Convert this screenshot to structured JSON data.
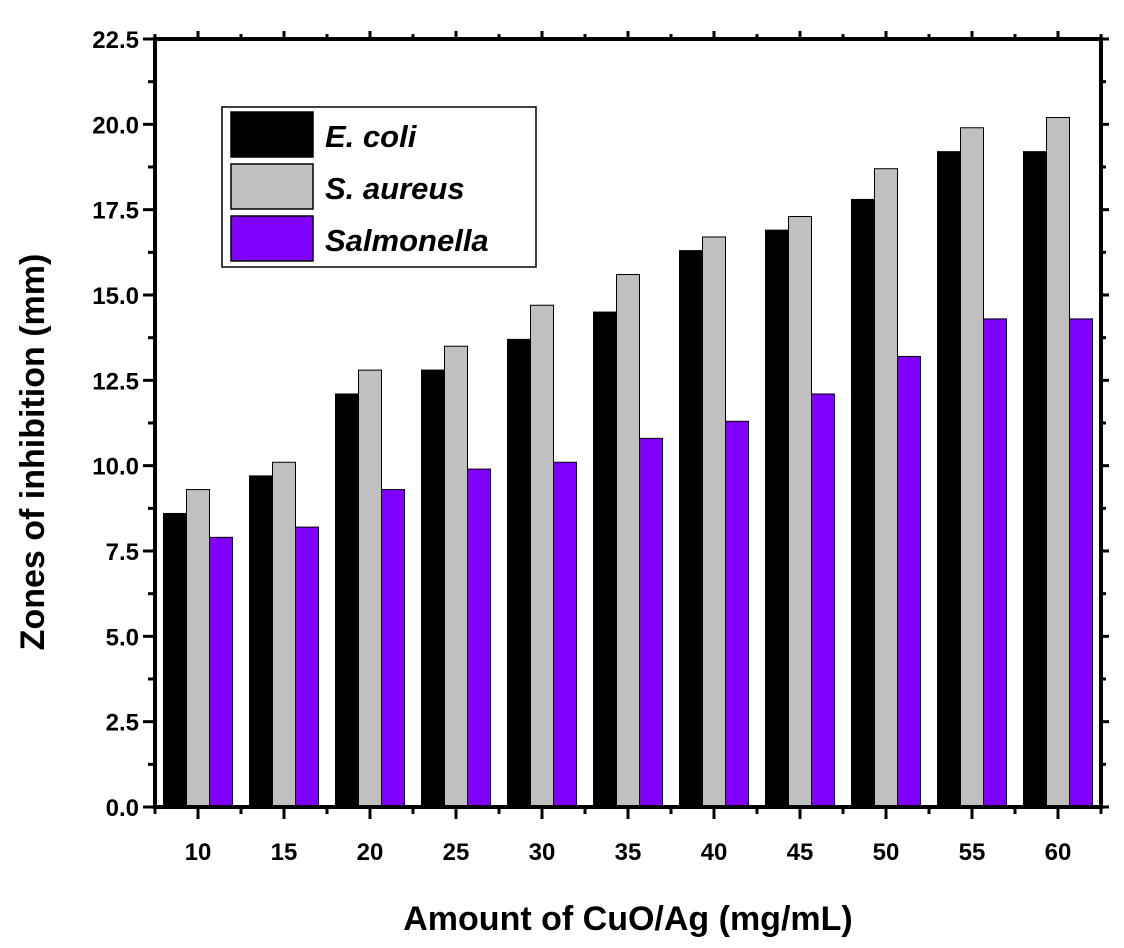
{
  "chart_data": {
    "type": "bar",
    "xlabel": "Amount of CuO/Ag (mg/mL)",
    "ylabel": "Zones of inhibition (mm)",
    "ylim": [
      0,
      22.5
    ],
    "yticks": [
      "0.0",
      "2.5",
      "5.0",
      "7.5",
      "10.0",
      "12.5",
      "15.0",
      "17.5",
      "20.0",
      "22.5"
    ],
    "categories": [
      "10",
      "15",
      "20",
      "25",
      "30",
      "35",
      "40",
      "45",
      "50",
      "55",
      "60"
    ],
    "legend_position": "top-left",
    "series": [
      {
        "name": "E. coli",
        "color": "#000000",
        "values": [
          8.6,
          9.7,
          12.1,
          12.8,
          13.7,
          14.5,
          16.3,
          16.9,
          17.8,
          19.2,
          19.2
        ]
      },
      {
        "name": "S. aureus",
        "color": "#c0c0c0",
        "values": [
          9.3,
          10.1,
          12.8,
          13.5,
          14.7,
          15.6,
          16.7,
          17.3,
          18.7,
          19.9,
          20.2
        ]
      },
      {
        "name": "Salmonella",
        "color": "#8000ff",
        "values": [
          7.9,
          8.2,
          9.3,
          9.9,
          10.1,
          10.8,
          11.3,
          12.1,
          13.2,
          14.3,
          14.3
        ]
      }
    ]
  }
}
